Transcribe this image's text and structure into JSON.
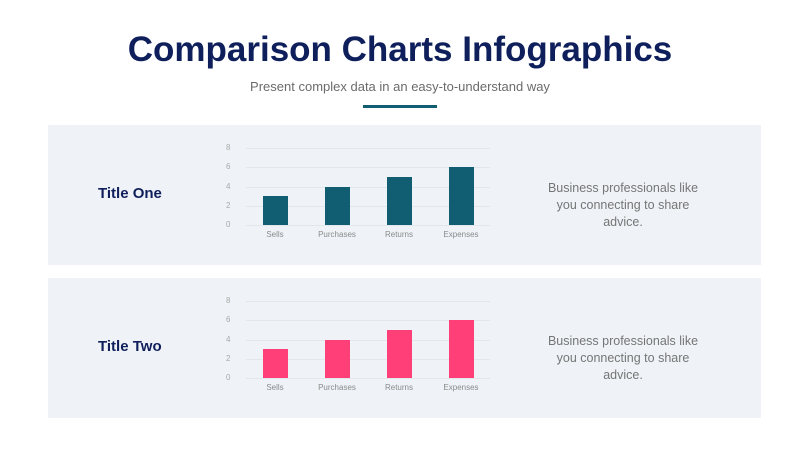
{
  "header": {
    "title": "Comparison Charts Infographics",
    "subtitle": "Present complex data in an easy-to-understand way",
    "accent_color": "#115e72"
  },
  "panels": [
    {
      "title": "Title One",
      "description": "Business professionals like you connecting to share advice.",
      "bar_color": "#115e72"
    },
    {
      "title": "Title Two",
      "description": "Business professionals like you connecting to share advice.",
      "bar_color": "#ff3f78"
    }
  ],
  "chart_data": [
    {
      "type": "bar",
      "title": "Title One",
      "categories": [
        "Sells",
        "Purchases",
        "Returns",
        "Expenses"
      ],
      "values": [
        3,
        4,
        5,
        6
      ],
      "yticks": [
        "0",
        "2",
        "4",
        "6",
        "8"
      ],
      "ylim": [
        0,
        8
      ],
      "xlabel": "",
      "ylabel": "",
      "grid": true,
      "color": "#115e72"
    },
    {
      "type": "bar",
      "title": "Title Two",
      "categories": [
        "Sells",
        "Purchases",
        "Returns",
        "Expenses"
      ],
      "values": [
        3,
        4,
        5,
        6
      ],
      "yticks": [
        "0",
        "2",
        "4",
        "6",
        "8"
      ],
      "ylim": [
        0,
        8
      ],
      "xlabel": "",
      "ylabel": "",
      "grid": true,
      "color": "#ff3f78"
    }
  ]
}
